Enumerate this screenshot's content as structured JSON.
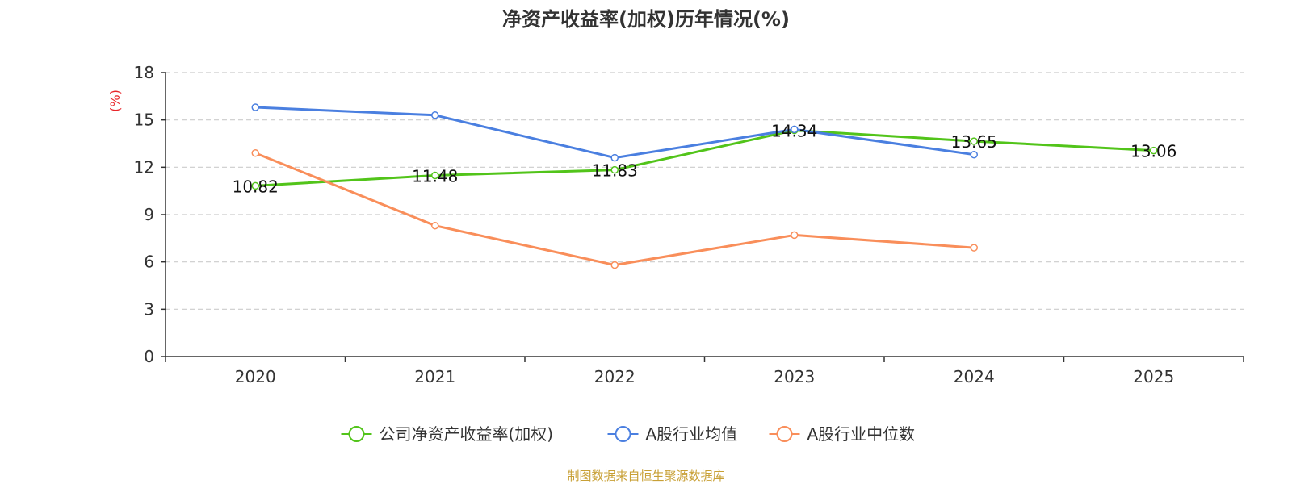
{
  "chart_data": {
    "type": "line",
    "title": "净资产收益率(加权)历年情况(%)",
    "xlabel": "",
    "ylabel": "(%)",
    "categories": [
      "2020",
      "2021",
      "2022",
      "2023",
      "2024",
      "2025"
    ],
    "ylim": [
      0,
      18
    ],
    "yticks": [
      0,
      3,
      6,
      9,
      12,
      15,
      18
    ],
    "grid": true,
    "legend_position": "bottom",
    "series": [
      {
        "name": "公司净资产收益率(加权)",
        "color": "#52c41a",
        "values": [
          10.82,
          11.48,
          11.83,
          14.34,
          13.65,
          13.06
        ],
        "show_labels": true
      },
      {
        "name": "A股行业均值",
        "color": "#4a7fe0",
        "values": [
          15.8,
          15.3,
          12.6,
          14.4,
          12.8,
          null
        ],
        "show_labels": false
      },
      {
        "name": "A股行业中位数",
        "color": "#f98e5a",
        "values": [
          12.9,
          8.3,
          5.8,
          7.7,
          6.9,
          null
        ],
        "show_labels": false
      }
    ],
    "data_labels": [
      "10.82",
      "11.48",
      "11.83",
      "14.34",
      "13.65",
      "13.06"
    ]
  },
  "source_text": "制图数据来自恒生聚源数据库",
  "colors": {
    "axis": "#333333",
    "grid": "#cccccc",
    "ylabel": "#e8262b",
    "source": "#c8a036"
  }
}
